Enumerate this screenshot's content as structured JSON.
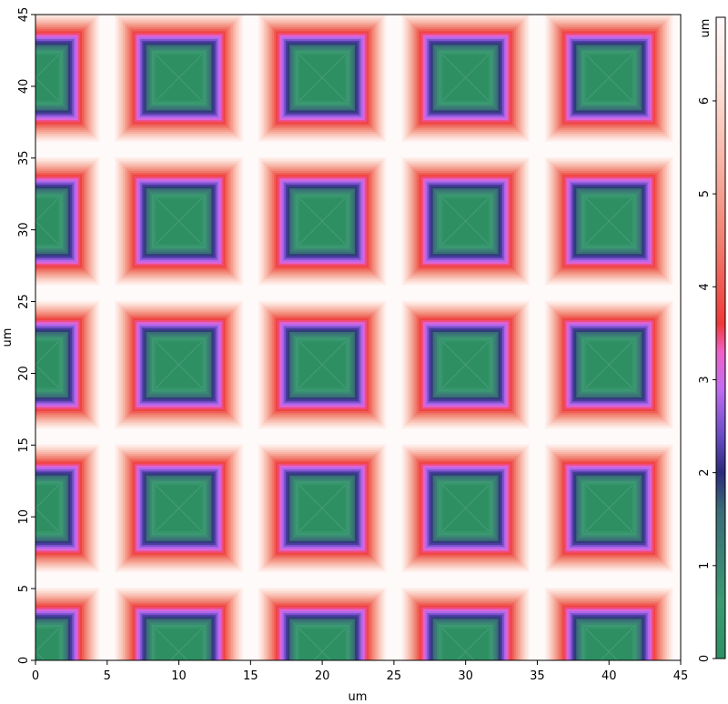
{
  "chart_data": {
    "type": "heatmap",
    "description_of_surface": "periodic array of inverted square pyramids",
    "xlabel": "um",
    "ylabel": "um",
    "colorbar_label": "um",
    "xlim": [
      0,
      45
    ],
    "ylim": [
      0,
      45
    ],
    "x_ticks": [
      "0",
      "5",
      "10",
      "15",
      "20",
      "25",
      "30",
      "35",
      "40",
      "45"
    ],
    "y_ticks": [
      "0",
      "5",
      "10",
      "15",
      "20",
      "25",
      "30",
      "35",
      "40",
      "45"
    ],
    "colorbar_range": [
      0,
      6.9
    ],
    "colorbar_ticks": [
      "0",
      "1",
      "2",
      "3",
      "4",
      "5",
      "6"
    ],
    "colormap": [
      {
        "value": 0.0,
        "color": "#2e8f63"
      },
      {
        "value": 0.6,
        "color": "#3c9a72"
      },
      {
        "value": 1.6,
        "color": "#3a6a78"
      },
      {
        "value": 2.0,
        "color": "#2c2a7a"
      },
      {
        "value": 2.4,
        "color": "#6a4cc4"
      },
      {
        "value": 2.9,
        "color": "#c06cf0"
      },
      {
        "value": 3.3,
        "color": "#f060c8"
      },
      {
        "value": 3.6,
        "color": "#f03838"
      },
      {
        "value": 4.5,
        "color": "#f08070"
      },
      {
        "value": 5.4,
        "color": "#f8b8aa"
      },
      {
        "value": 6.2,
        "color": "#fde2da"
      },
      {
        "value": 6.9,
        "color": "#fffafa"
      }
    ],
    "pattern": {
      "period_um": 10,
      "pit_centers_x_um": [
        0,
        10,
        20,
        30,
        40
      ],
      "pit_centers_y_um": [
        0.6,
        10.6,
        20.6,
        30.6,
        40.6
      ],
      "pit_half_width_um": 4.6,
      "ridge_height_um": 6.9,
      "floor_half_width_um": 1.6,
      "floor_height_um": 0
    }
  }
}
